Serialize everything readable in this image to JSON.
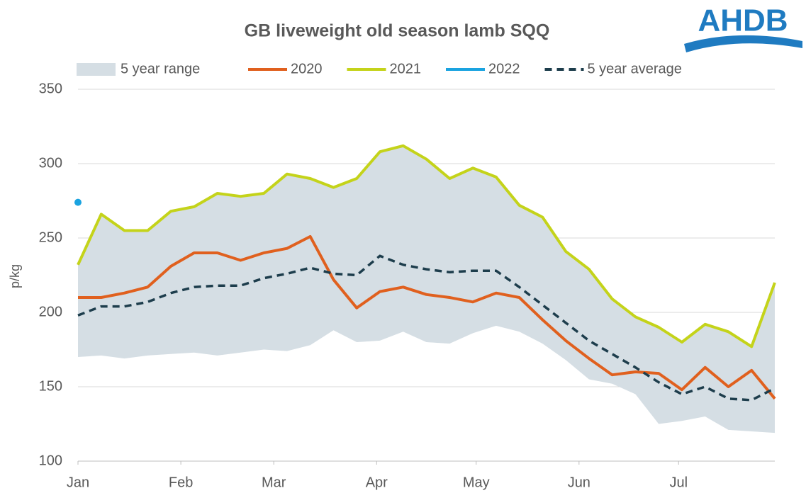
{
  "chart_data": {
    "type": "line",
    "title": "GB liveweight old season lamb SQQ",
    "logo": "AHDB",
    "ylabel": "p/kg",
    "x": [
      0,
      7,
      14,
      21,
      28,
      35,
      42,
      49,
      56,
      63,
      70,
      77,
      84,
      91,
      98,
      105,
      112,
      119,
      126,
      133,
      140,
      147,
      154,
      161,
      168,
      175,
      182,
      189,
      196,
      203,
      210
    ],
    "xlim": [
      0,
      210
    ],
    "xticks": [
      {
        "value": 0,
        "label": "Jan"
      },
      {
        "value": 31,
        "label": "Feb"
      },
      {
        "value": 59,
        "label": "Mar"
      },
      {
        "value": 90,
        "label": "Apr"
      },
      {
        "value": 120,
        "label": "May"
      },
      {
        "value": 151,
        "label": "Jun"
      },
      {
        "value": 181,
        "label": "Jul"
      }
    ],
    "ylim": [
      100,
      350
    ],
    "yticks": [
      100,
      150,
      200,
      250,
      300,
      350
    ],
    "grid": true,
    "legend": "top",
    "range": {
      "name": "5 year range",
      "color": "#d5dee4",
      "low": [
        170,
        171,
        169,
        171,
        172,
        173,
        171,
        173,
        175,
        174,
        178,
        188,
        180,
        181,
        187,
        180,
        179,
        186,
        191,
        187,
        179,
        168,
        155,
        152,
        145,
        125,
        127,
        130,
        121,
        120,
        119
      ],
      "high": [
        232,
        266,
        255,
        255,
        268,
        271,
        280,
        278,
        280,
        293,
        290,
        284,
        290,
        308,
        312,
        303,
        290,
        297,
        291,
        272,
        264,
        241,
        229,
        209,
        197,
        190,
        180,
        192,
        187,
        177,
        220
      ]
    },
    "series": [
      {
        "name": "2020",
        "color": "#e0601e",
        "values": [
          210,
          210,
          213,
          217,
          231,
          240,
          240,
          235,
          240,
          243,
          251,
          222,
          203,
          214,
          217,
          212,
          210,
          207,
          213,
          210,
          195,
          181,
          169,
          158,
          160,
          159,
          148,
          163,
          150,
          161,
          142
        ]
      },
      {
        "name": "2021",
        "color": "#c4d31a",
        "values": [
          232,
          266,
          255,
          255,
          268,
          271,
          280,
          278,
          280,
          293,
          290,
          284,
          290,
          308,
          312,
          303,
          290,
          297,
          291,
          272,
          264,
          241,
          229,
          209,
          197,
          190,
          180,
          192,
          187,
          177,
          220
        ]
      },
      {
        "name": "2022",
        "color": "#1aa3e0",
        "values": [
          274,
          null,
          null,
          null,
          null,
          null,
          null,
          null,
          null,
          null,
          null,
          null,
          null,
          null,
          null,
          null,
          null,
          null,
          null,
          null,
          null,
          null,
          null,
          null,
          null,
          null,
          null,
          null,
          null,
          null,
          null
        ]
      },
      {
        "name": "5 year average",
        "color": "#1d3d4c",
        "dash": true,
        "values": [
          198,
          204,
          204,
          207,
          213,
          217,
          218,
          218,
          223,
          226,
          230,
          226,
          225,
          238,
          232,
          229,
          227,
          228,
          228,
          217,
          205,
          193,
          181,
          172,
          163,
          153,
          145,
          150,
          142,
          141,
          149
        ]
      }
    ]
  }
}
